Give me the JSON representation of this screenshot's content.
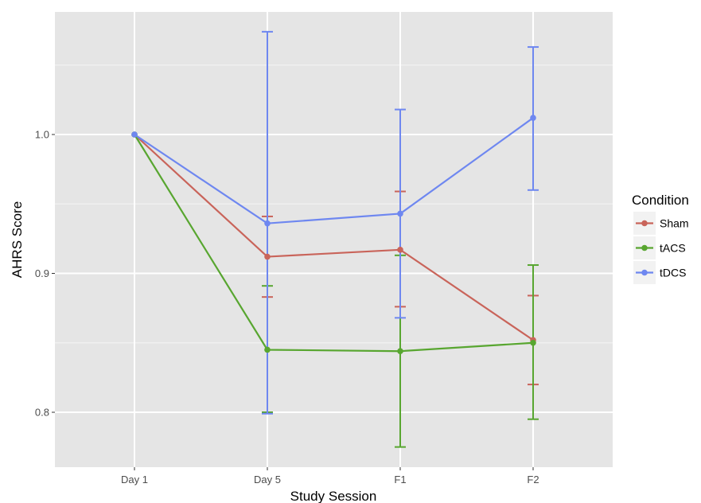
{
  "chart_data": {
    "type": "line",
    "title": "",
    "xlabel": "Study Session",
    "ylabel": "AHRS Score",
    "categories": [
      "Day 1",
      "Day 5",
      "F1",
      "F2"
    ],
    "ylim": [
      0.76,
      1.09
    ],
    "yticks": [
      0.8,
      0.9,
      1.0
    ],
    "ytick_labels": [
      "0.8",
      "0.9",
      "1.0"
    ],
    "grid": true,
    "legend": {
      "title": "Condition",
      "placement": "right"
    },
    "series": [
      {
        "name": "Sham",
        "color": "#c9645a",
        "values": [
          1.0,
          0.912,
          0.917,
          0.852
        ],
        "error_low": [
          1.0,
          0.883,
          0.876,
          0.82
        ],
        "error_high": [
          1.0,
          0.941,
          0.959,
          0.884
        ]
      },
      {
        "name": "tACS",
        "color": "#58a630",
        "values": [
          1.0,
          0.845,
          0.844,
          0.85
        ],
        "error_low": [
          1.0,
          0.8,
          0.775,
          0.795
        ],
        "error_high": [
          1.0,
          0.891,
          0.913,
          0.906
        ]
      },
      {
        "name": "tDCS",
        "color": "#6e87f0",
        "values": [
          1.0,
          0.936,
          0.943,
          1.012
        ],
        "error_low": [
          1.0,
          0.799,
          0.868,
          0.96
        ],
        "error_high": [
          1.0,
          1.074,
          1.018,
          1.063
        ]
      }
    ]
  }
}
